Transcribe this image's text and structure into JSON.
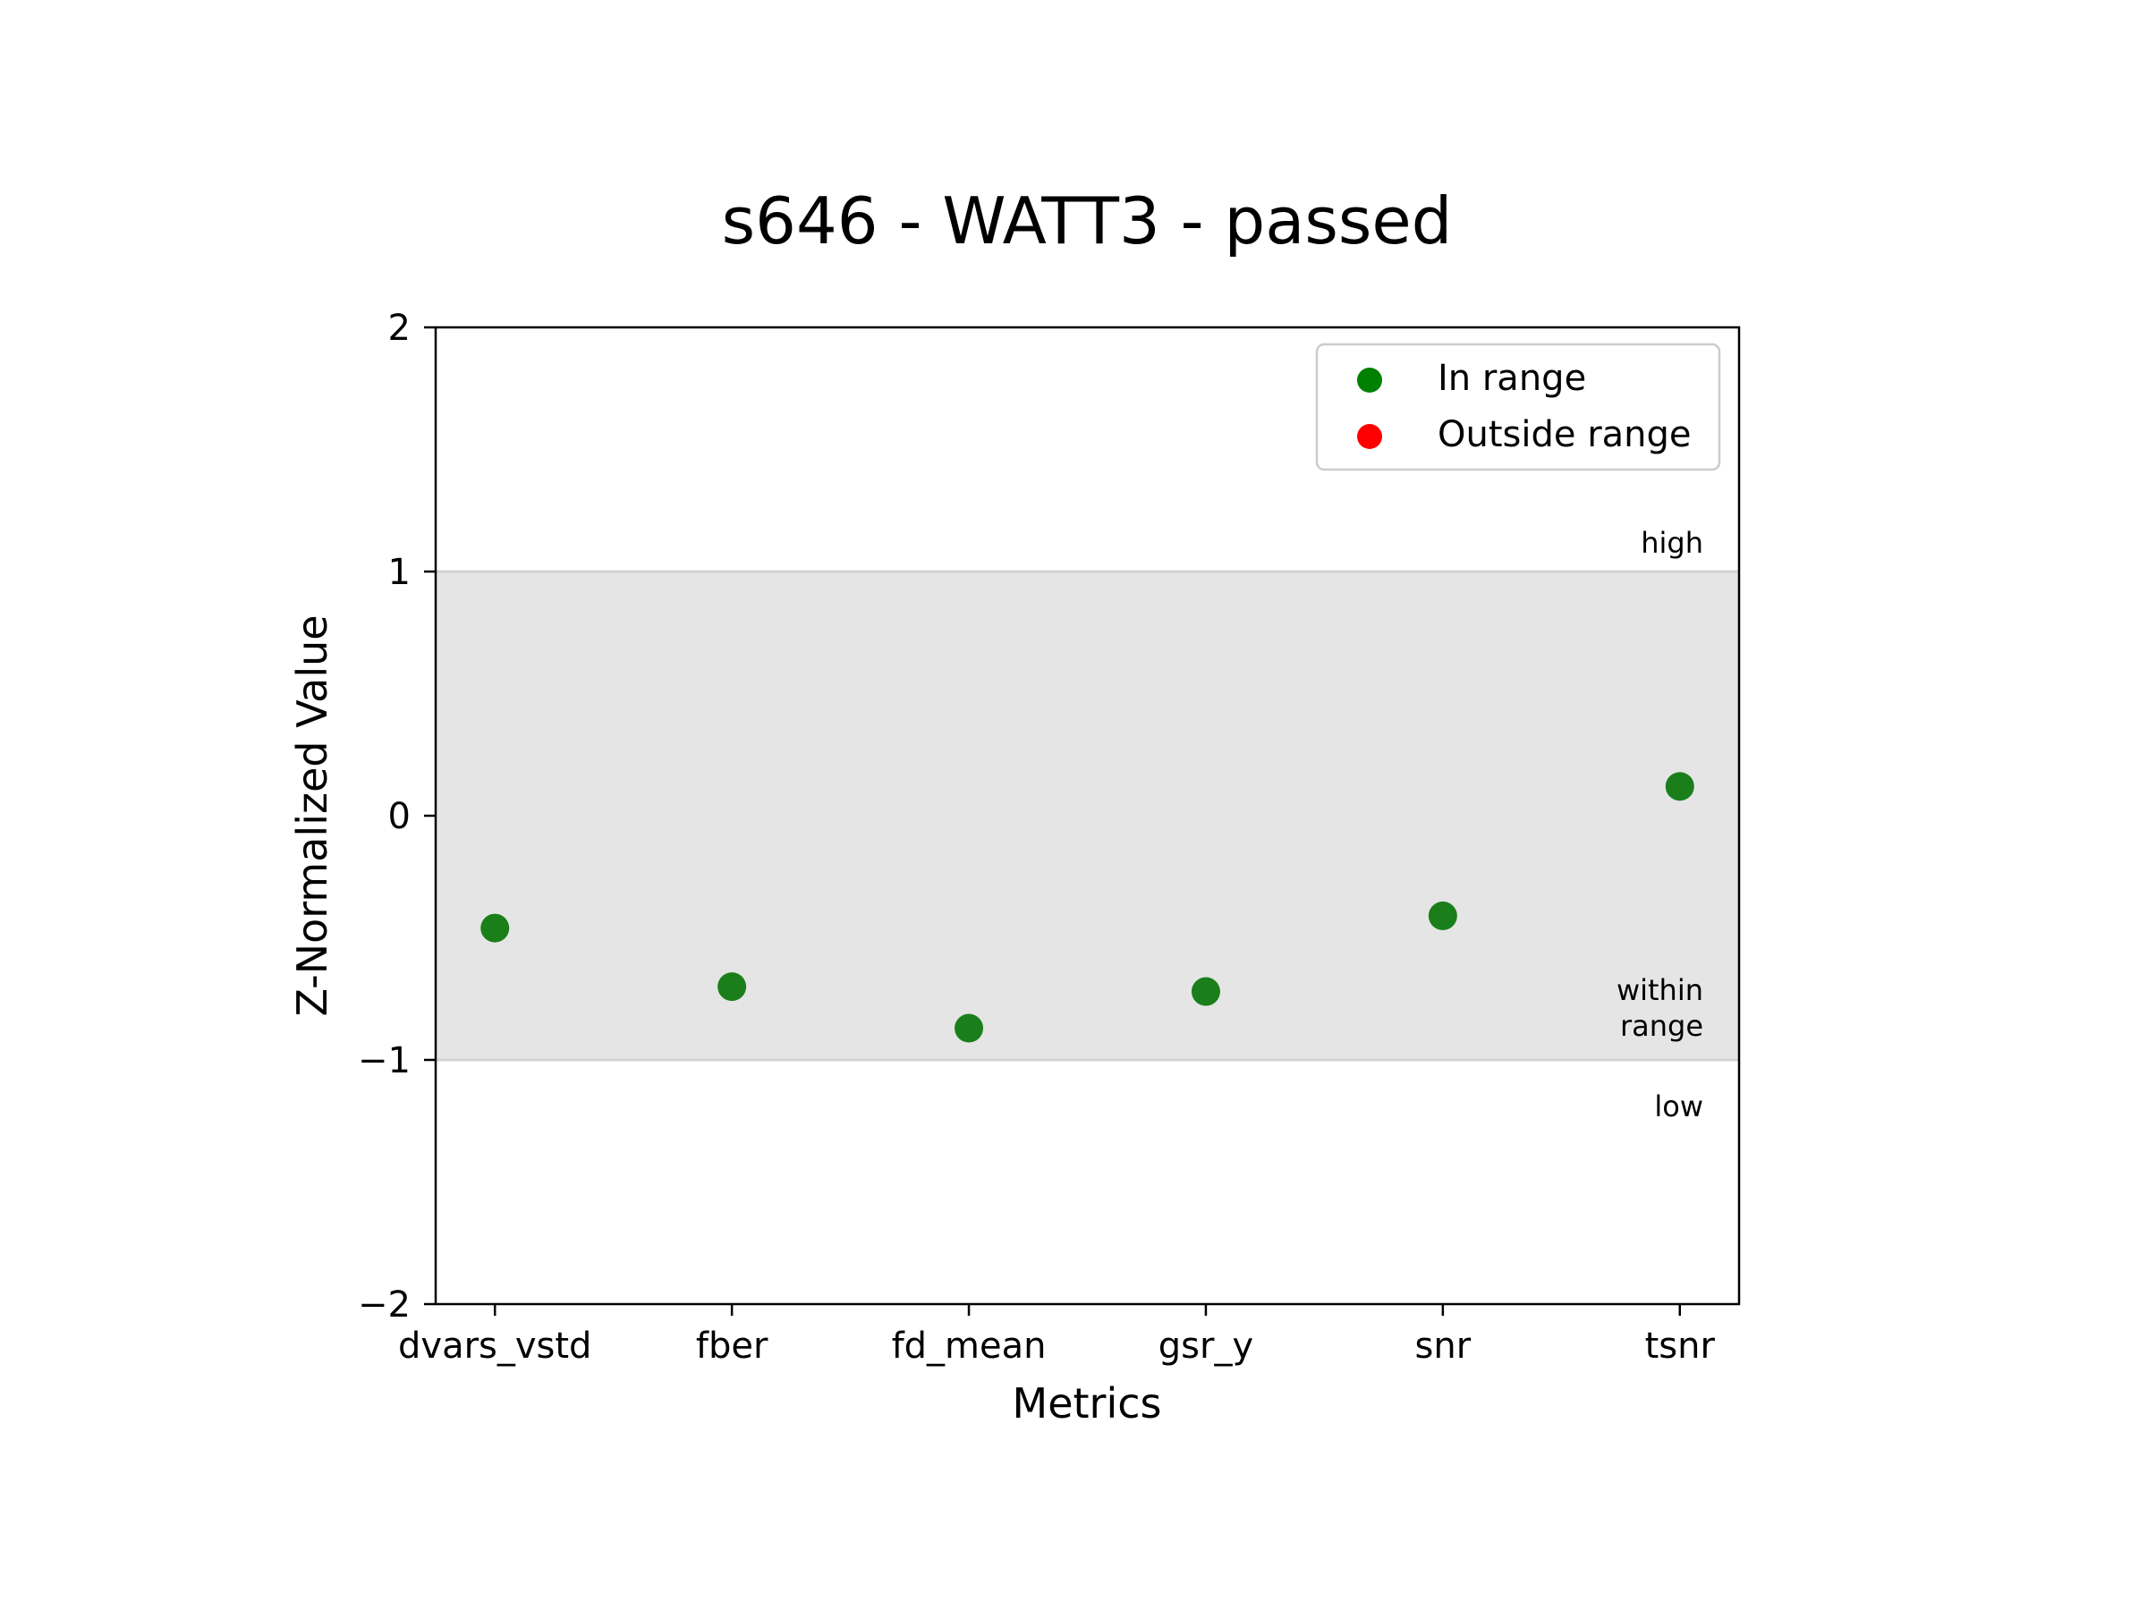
{
  "chart_data": {
    "type": "scatter",
    "title": "s646 - WATT3 - passed",
    "xlabel": "Metrics",
    "ylabel": "Z-Normalized Value",
    "categories": [
      "dvars_vstd",
      "fber",
      "fd_mean",
      "gsr_y",
      "snr",
      "tsnr"
    ],
    "values": [
      -0.46,
      -0.7,
      -0.87,
      -0.72,
      -0.41,
      0.12
    ],
    "ylim": [
      -2,
      2
    ],
    "yticks": [
      2,
      1,
      0,
      -1,
      -2
    ],
    "ytick_labels": [
      "2",
      "1",
      "0",
      "−1",
      "−2"
    ],
    "range_band": [
      -1,
      1
    ],
    "band_labels": {
      "high": "high",
      "within_line1": "within",
      "within_line2": "range",
      "low": "low"
    },
    "legend": {
      "position": "upper right",
      "entries": [
        {
          "label": "In range",
          "color": "#008000"
        },
        {
          "label": "Outside range",
          "color": "#ff0000"
        }
      ]
    },
    "colors": {
      "point": "#1a7f1a",
      "band": "#e5e5e5",
      "band_edge": "#d3d3d3"
    },
    "grid": false
  }
}
